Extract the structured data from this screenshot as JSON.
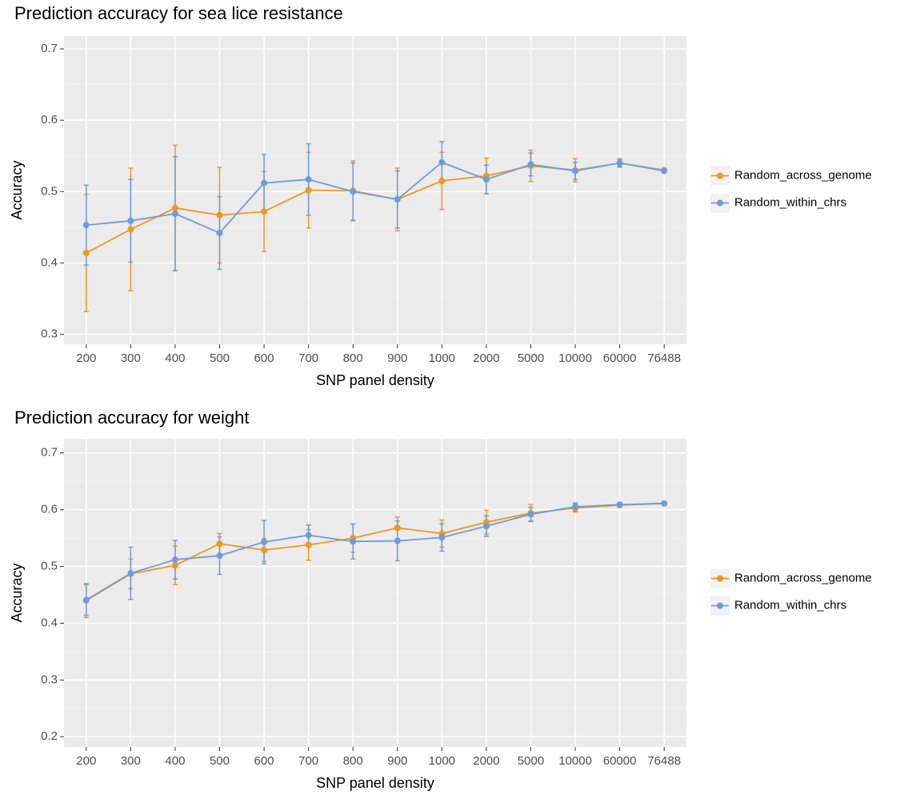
{
  "chart_data": [
    {
      "type": "line",
      "title": "Prediction accuracy for sea lice resistance",
      "x_label": "SNP panel density",
      "y_label": "Accuracy",
      "categories": [
        "200",
        "300",
        "400",
        "500",
        "600",
        "700",
        "800",
        "900",
        "1000",
        "2000",
        "5000",
        "10000",
        "60000",
        "76488"
      ],
      "series": [
        {
          "name": "Random_across_genome",
          "color": "#f0961e",
          "values": [
            0.414,
            0.447,
            0.477,
            0.467,
            0.472,
            0.502,
            0.501,
            0.489,
            0.515,
            0.522,
            0.536,
            0.53,
            0.54,
            0.53
          ],
          "errors": [
            0.082,
            0.086,
            0.088,
            0.067,
            0.056,
            0.053,
            0.042,
            0.044,
            0.04,
            0.025,
            0.022,
            0.016,
            0.006,
            0
          ]
        },
        {
          "name": "Random_within_chrs",
          "color": "#6c9be0",
          "values": [
            0.453,
            0.459,
            0.469,
            0.442,
            0.512,
            0.517,
            0.5,
            0.489,
            0.541,
            0.517,
            0.538,
            0.529,
            0.54,
            0.529
          ],
          "errors": [
            0.056,
            0.058,
            0.08,
            0.051,
            0.04,
            0.05,
            0.04,
            0.04,
            0.029,
            0.02,
            0.016,
            0.012,
            0.005,
            0
          ]
        }
      ],
      "ylim": [
        0.286,
        0.718
      ],
      "yticks": [
        0.3,
        0.4,
        0.5,
        0.6,
        0.7
      ],
      "grid": true,
      "legend": "right"
    },
    {
      "type": "line",
      "title": "Prediction accuracy for weight",
      "x_label": "SNP panel density",
      "y_label": "Accuracy",
      "categories": [
        "200",
        "300",
        "400",
        "500",
        "600",
        "700",
        "800",
        "900",
        "1000",
        "2000",
        "5000",
        "10000",
        "60000",
        "76488"
      ],
      "series": [
        {
          "name": "Random_across_genome",
          "color": "#f0961e",
          "values": [
            0.44,
            0.487,
            0.502,
            0.54,
            0.529,
            0.538,
            0.55,
            0.568,
            0.558,
            0.578,
            0.594,
            0.603,
            0.608,
            0.611
          ],
          "errors": [
            0.03,
            0.026,
            0.034,
            0.018,
            0.02,
            0.027,
            0.025,
            0.019,
            0.024,
            0.021,
            0.015,
            0.007,
            0.003,
            0
          ]
        },
        {
          "name": "Random_within_chrs",
          "color": "#6c9be0",
          "values": [
            0.441,
            0.488,
            0.512,
            0.519,
            0.543,
            0.555,
            0.544,
            0.545,
            0.551,
            0.571,
            0.592,
            0.605,
            0.609,
            0.611
          ],
          "errors": [
            0.027,
            0.046,
            0.034,
            0.033,
            0.038,
            0.018,
            0.031,
            0.035,
            0.024,
            0.018,
            0.012,
            0.007,
            0.003,
            0
          ]
        }
      ],
      "ylim": [
        0.182,
        0.725
      ],
      "yticks": [
        0.2,
        0.3,
        0.4,
        0.5,
        0.6,
        0.7
      ],
      "grid": true,
      "legend": "right"
    }
  ]
}
